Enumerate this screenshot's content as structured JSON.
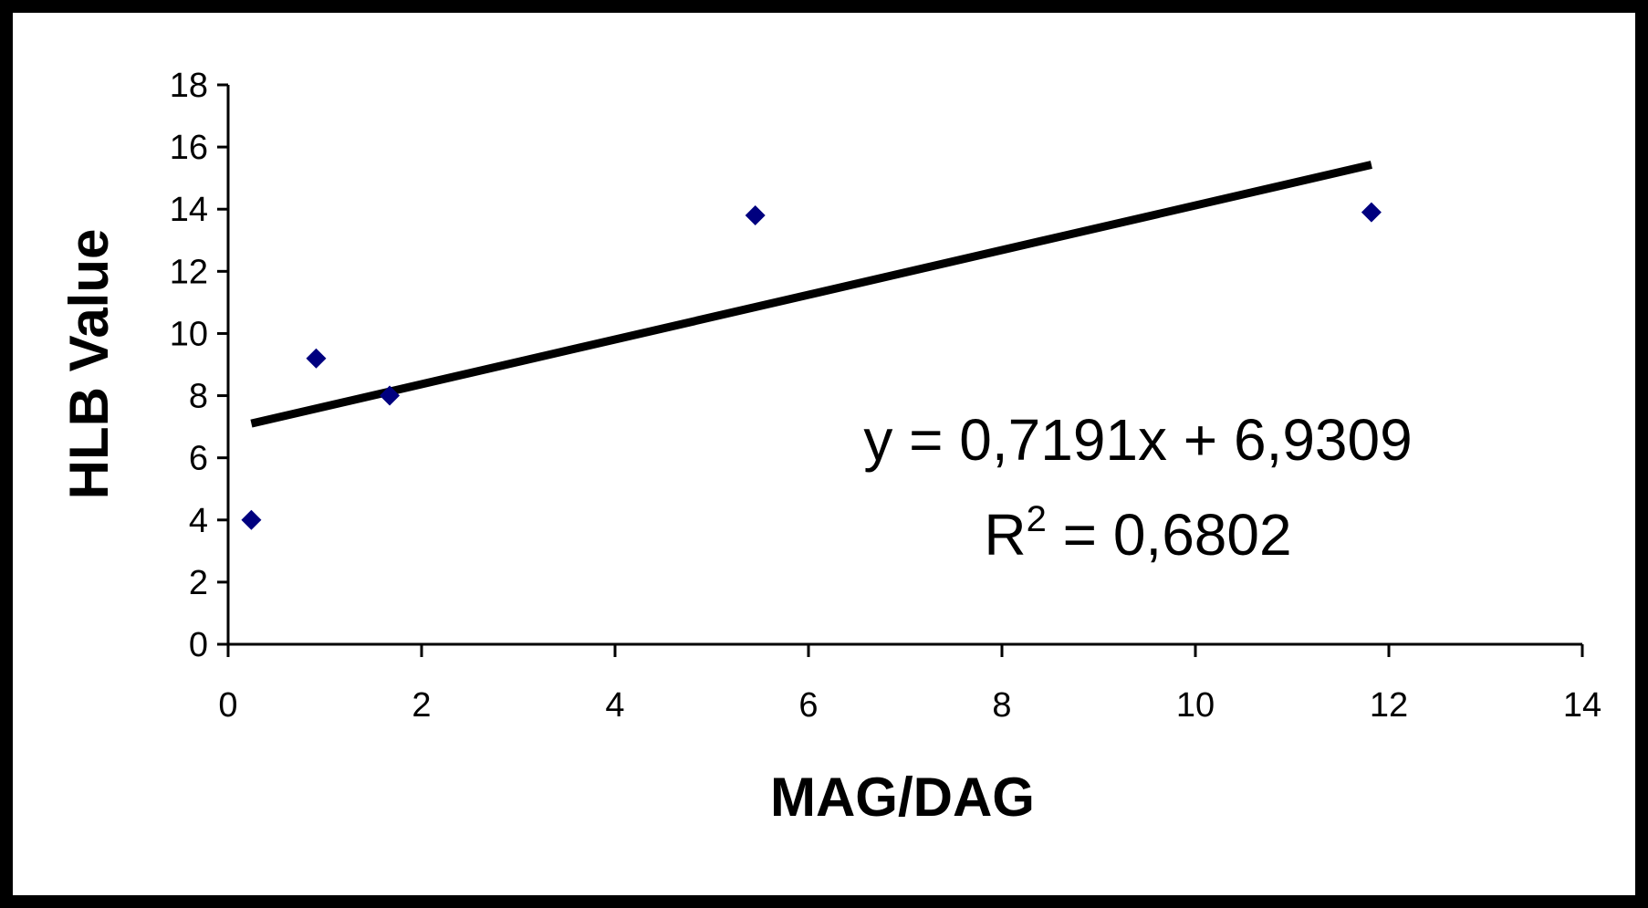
{
  "chart_data": {
    "type": "scatter",
    "title": "",
    "xlabel": "MAG/DAG",
    "ylabel": "HLB Value",
    "xlim": [
      0,
      14
    ],
    "ylim": [
      0,
      18
    ],
    "x_ticks": [
      "0",
      "2",
      "4",
      "6",
      "8",
      "10",
      "12",
      "14"
    ],
    "y_ticks": [
      "0",
      "2",
      "4",
      "6",
      "8",
      "10",
      "12",
      "14",
      "16",
      "18"
    ],
    "grid": false,
    "legend": "none",
    "series": [
      {
        "marker": "diamond",
        "color": "#00007f",
        "points": [
          {
            "x": 0.24,
            "y": 4.0
          },
          {
            "x": 0.91,
            "y": 9.2
          },
          {
            "x": 1.67,
            "y": 8.0
          },
          {
            "x": 5.45,
            "y": 13.8
          },
          {
            "x": 11.82,
            "y": 13.9
          }
        ]
      }
    ],
    "trendline": {
      "type": "linear",
      "slope": 0.7191,
      "intercept": 6.9309,
      "x_range": [
        0.24,
        11.82
      ],
      "color": "#000000"
    },
    "annotations": {
      "equation": "y = 0,7191x + 6,9309",
      "r2_prefix": "R",
      "r2_superscript": "2",
      "r2_suffix": " = 0,6802"
    }
  }
}
